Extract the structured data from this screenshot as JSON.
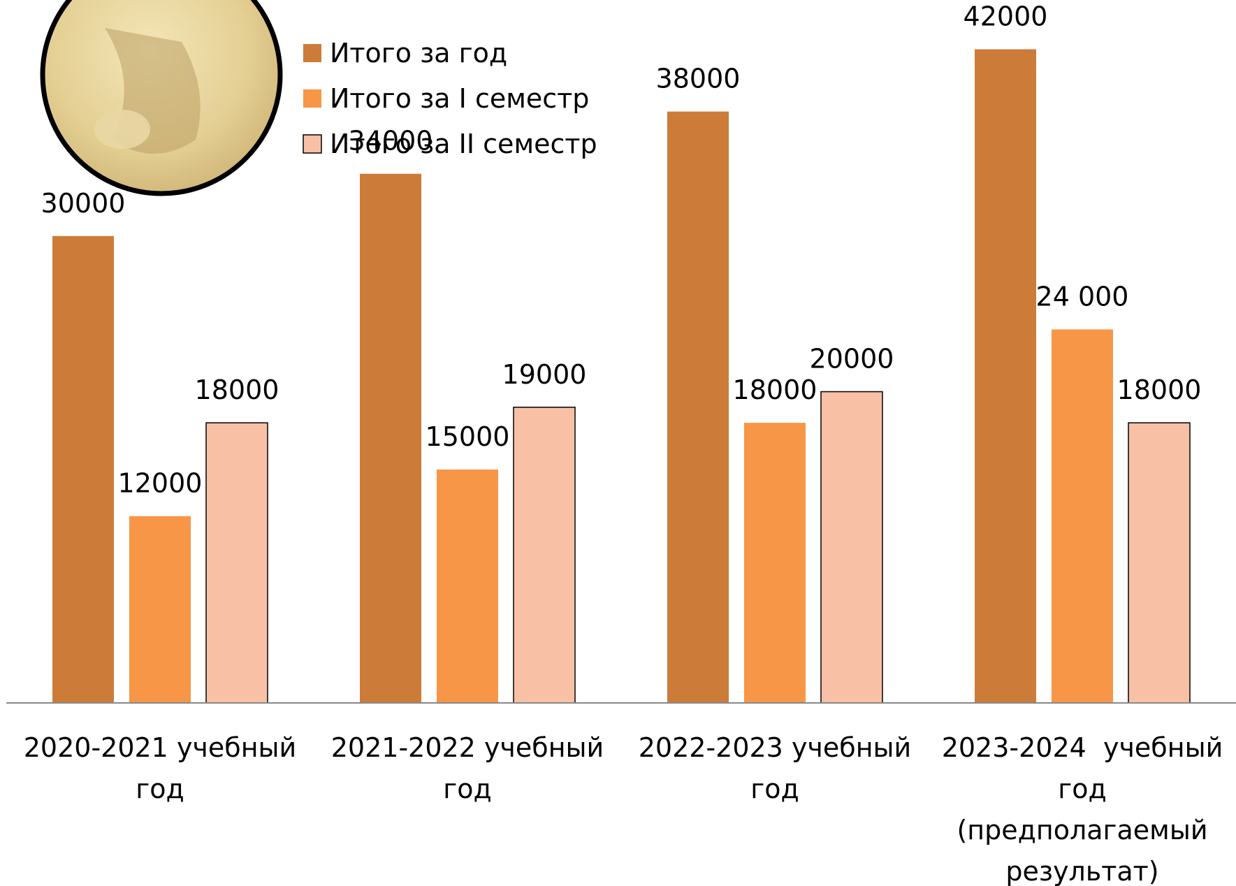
{
  "chart_data": {
    "type": "bar",
    "categories": [
      "2020-2021 учебный год",
      "2021-2022 учебный год",
      "2022-2023 учебный год",
      "2023-2024  учебный год (предполагаемый результат)"
    ],
    "series": [
      {
        "name": "Итого за год",
        "color": "#cd7b38",
        "values": [
          30000,
          34000,
          38000,
          42000
        ]
      },
      {
        "name": "Итого за I семестр",
        "color": "#f79646",
        "values": [
          12000,
          15000,
          18000,
          24000
        ],
        "value_labels": [
          "12000",
          "15000",
          "18000",
          "24 000"
        ]
      },
      {
        "name": "Итого за II семестр",
        "color": "#f8c1a6",
        "values": [
          18000,
          19000,
          20000,
          18000
        ]
      }
    ],
    "ylim": [
      0,
      44000
    ],
    "legend": "top"
  }
}
